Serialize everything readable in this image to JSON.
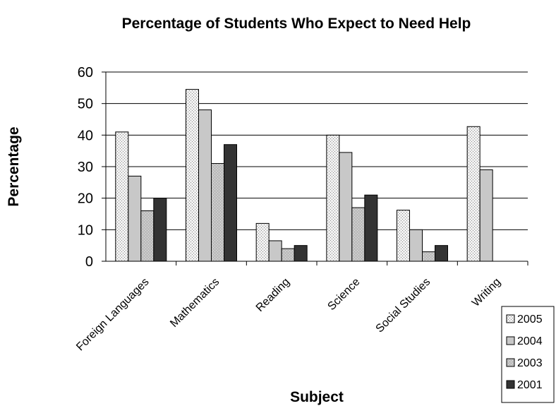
{
  "chart_data": {
    "type": "bar",
    "title": "Percentage of Students Who Expect to Need Help",
    "xlabel": "Subject",
    "ylabel": "Percentage",
    "ylim": [
      0,
      60
    ],
    "yticks": [
      0,
      10,
      20,
      30,
      40,
      50,
      60
    ],
    "grid": true,
    "legend_position": "bottom-right",
    "categories": [
      "Foreign Languages",
      "Mathematics",
      "Reading",
      "Science",
      "Social Studies",
      "Writing"
    ],
    "series": [
      {
        "name": "2005",
        "values": [
          41,
          54.5,
          12,
          40,
          16.2,
          42.7
        ],
        "color": "#e8e8e8",
        "pattern": "dots"
      },
      {
        "name": "2004",
        "values": [
          27,
          48,
          6.5,
          34.5,
          10,
          29
        ],
        "color": "#c8c8c8",
        "pattern": "solid"
      },
      {
        "name": "2003",
        "values": [
          16,
          31,
          4,
          17,
          3,
          null
        ],
        "color": "#b4b4b4",
        "pattern": "dots"
      },
      {
        "name": "2001",
        "values": [
          20,
          37,
          5,
          21,
          5,
          null
        ],
        "color": "#333333",
        "pattern": "solid"
      }
    ]
  }
}
